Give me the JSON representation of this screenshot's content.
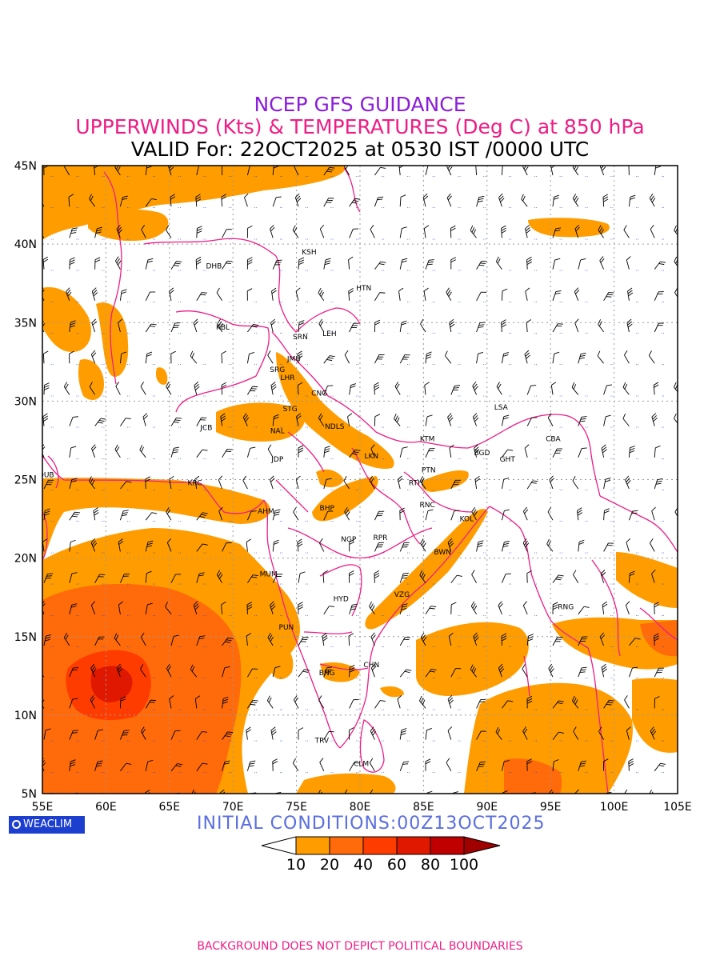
{
  "header": {
    "title": "NCEP GFS GUIDANCE",
    "subtitle": "UPPERWINDS (Kts) & TEMPERATURES (Deg C) at 850 hPa",
    "valid": "VALID For: 22OCT2025 at 0530 IST /0000 UTC"
  },
  "map": {
    "lon_range": [
      55,
      105
    ],
    "lat_range": [
      5,
      45
    ],
    "lon_labels": [
      "55E",
      "60E",
      "65E",
      "70E",
      "75E",
      "80E",
      "85E",
      "90E",
      "95E",
      "100E",
      "105E"
    ],
    "lat_labels": [
      "5N",
      "10N",
      "15N",
      "20N",
      "25N",
      "30N",
      "35N",
      "40N",
      "45N"
    ],
    "colors": {
      "c10": "#ff9d00",
      "c20": "#ff6a0a",
      "c40": "#ff3c00",
      "c60": "#e11800",
      "c80": "#c00000",
      "c100": "#a00000",
      "boundary": "#ee1d84",
      "grid": "#999999",
      "temp_text": "#2b3fd6"
    },
    "cities": [
      {
        "name": "KSH",
        "lon": 76.0,
        "lat": 39.5
      },
      {
        "name": "DHB",
        "lon": 68.5,
        "lat": 38.6
      },
      {
        "name": "HTN",
        "lon": 80.3,
        "lat": 37.2
      },
      {
        "name": "KBL",
        "lon": 69.2,
        "lat": 34.7
      },
      {
        "name": "SRN",
        "lon": 75.3,
        "lat": 34.1
      },
      {
        "name": "LEH",
        "lon": 77.6,
        "lat": 34.3
      },
      {
        "name": "JMU",
        "lon": 74.8,
        "lat": 32.7
      },
      {
        "name": "SRG",
        "lon": 73.5,
        "lat": 32.0
      },
      {
        "name": "LHR",
        "lon": 74.3,
        "lat": 31.5
      },
      {
        "name": "CNG",
        "lon": 76.8,
        "lat": 30.5
      },
      {
        "name": "STG",
        "lon": 74.5,
        "lat": 29.5
      },
      {
        "name": "LSA",
        "lon": 91.1,
        "lat": 29.6
      },
      {
        "name": "JCB",
        "lon": 67.9,
        "lat": 28.3
      },
      {
        "name": "NAL",
        "lon": 73.5,
        "lat": 28.1
      },
      {
        "name": "NDLS",
        "lon": 78.0,
        "lat": 28.4
      },
      {
        "name": "KTM",
        "lon": 85.3,
        "lat": 27.6
      },
      {
        "name": "BGD",
        "lon": 89.6,
        "lat": 26.7
      },
      {
        "name": "CBA",
        "lon": 95.2,
        "lat": 27.6
      },
      {
        "name": "GHT",
        "lon": 91.6,
        "lat": 26.3
      },
      {
        "name": "JDP",
        "lon": 73.5,
        "lat": 26.3
      },
      {
        "name": "LKN",
        "lon": 80.9,
        "lat": 26.5
      },
      {
        "name": "PTN",
        "lon": 85.4,
        "lat": 25.6
      },
      {
        "name": "DUB",
        "lon": 55.3,
        "lat": 25.3
      },
      {
        "name": "KRC",
        "lon": 67.0,
        "lat": 24.8
      },
      {
        "name": "RTH",
        "lon": 84.4,
        "lat": 24.8
      },
      {
        "name": "AHM",
        "lon": 72.6,
        "lat": 23.0
      },
      {
        "name": "BHP",
        "lon": 77.4,
        "lat": 23.2
      },
      {
        "name": "RNC",
        "lon": 85.3,
        "lat": 23.4
      },
      {
        "name": "KOL",
        "lon": 88.4,
        "lat": 22.5
      },
      {
        "name": "NGP",
        "lon": 79.1,
        "lat": 21.2
      },
      {
        "name": "RPR",
        "lon": 81.6,
        "lat": 21.3
      },
      {
        "name": "BWN",
        "lon": 86.5,
        "lat": 20.4
      },
      {
        "name": "MUM",
        "lon": 72.8,
        "lat": 19.0
      },
      {
        "name": "HYD",
        "lon": 78.5,
        "lat": 17.4
      },
      {
        "name": "VZG",
        "lon": 83.3,
        "lat": 17.7
      },
      {
        "name": "RNG",
        "lon": 96.2,
        "lat": 16.9
      },
      {
        "name": "PUN",
        "lon": 74.2,
        "lat": 15.6
      },
      {
        "name": "CHN",
        "lon": 80.9,
        "lat": 13.2
      },
      {
        "name": "BNG",
        "lon": 77.4,
        "lat": 12.7
      },
      {
        "name": "TRV",
        "lon": 77.0,
        "lat": 8.4
      },
      {
        "name": "CLM",
        "lon": 80.1,
        "lat": 6.9
      }
    ]
  },
  "initial_conditions": "INITIAL CONDITIONS:00Z13OCT2025",
  "logo_text": "WEACLIM",
  "legend": {
    "ticks": [
      "10",
      "20",
      "40",
      "60",
      "80",
      "100"
    ]
  },
  "footer": "BACKGROUND DOES NOT DEPICT POLITICAL BOUNDARIES"
}
